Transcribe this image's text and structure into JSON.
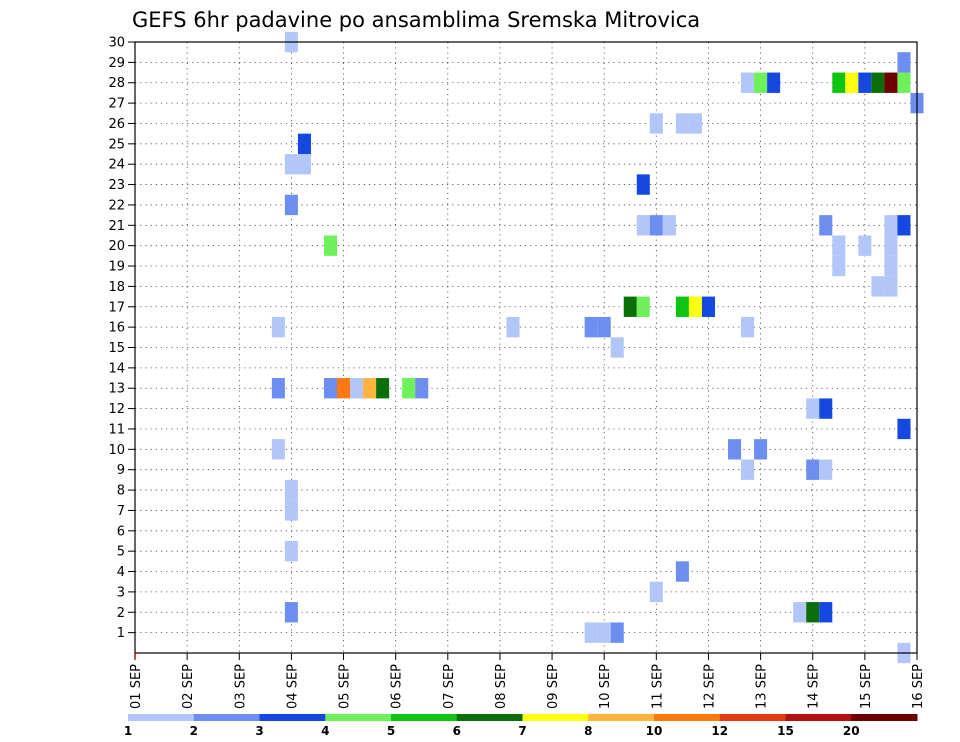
{
  "chart_data": {
    "type": "heatmap",
    "title": "GEFS 6hr padavine po ansamblima Sremska Mitrovica",
    "y_ticks": [
      "1",
      "2",
      "3",
      "4",
      "5",
      "6",
      "7",
      "8",
      "9",
      "10",
      "11",
      "12",
      "13",
      "14",
      "15",
      "16",
      "17",
      "18",
      "19",
      "20",
      "21",
      "22",
      "23",
      "24",
      "25",
      "26",
      "27",
      "28",
      "29",
      "30"
    ],
    "x_ticks": [
      "01 SEP",
      "02 SEP",
      "03 SEP",
      "04 SEP",
      "05 SEP",
      "06 SEP",
      "07 SEP",
      "08 SEP",
      "09 SEP",
      "10 SEP",
      "11 SEP",
      "12 SEP",
      "13 SEP",
      "14 SEP",
      "15 SEP",
      "16 SEP"
    ],
    "x_range_days": [
      1,
      16
    ],
    "y_range": [
      0,
      30
    ],
    "grid": true,
    "colorbar": {
      "labels": [
        "1",
        "2",
        "3",
        "4",
        "5",
        "6",
        "7",
        "8",
        "10",
        "12",
        "15",
        "20"
      ],
      "colors": [
        "#b3c6fa",
        "#6b8ef0",
        "#1448e0",
        "#6ef05a",
        "#10c414",
        "#0a6e0a",
        "#ffff10",
        "#ffb43c",
        "#ff7810",
        "#e03c14",
        "#b40f0f",
        "#6e0000"
      ]
    },
    "cells": [
      {
        "m": 30,
        "d": 4.0,
        "c": 0
      },
      {
        "m": 29,
        "d": 15.75,
        "c": 1
      },
      {
        "m": 28,
        "d": 12.75,
        "c": 0
      },
      {
        "m": 28,
        "d": 13.0,
        "c": 3
      },
      {
        "m": 28,
        "d": 13.25,
        "c": 2
      },
      {
        "m": 28,
        "d": 14.5,
        "c": 4
      },
      {
        "m": 28,
        "d": 14.75,
        "c": 6
      },
      {
        "m": 28,
        "d": 15.0,
        "c": 2
      },
      {
        "m": 28,
        "d": 15.25,
        "c": 5
      },
      {
        "m": 28,
        "d": 15.5,
        "c": 11
      },
      {
        "m": 28,
        "d": 15.75,
        "c": 3
      },
      {
        "m": 27,
        "d": 16.0,
        "c": 1
      },
      {
        "m": 26,
        "d": 11.0,
        "c": 0
      },
      {
        "m": 26,
        "d": 11.5,
        "c": 0
      },
      {
        "m": 26,
        "d": 11.75,
        "c": 0
      },
      {
        "m": 25,
        "d": 4.25,
        "c": 2
      },
      {
        "m": 24,
        "d": 4.0,
        "c": 0
      },
      {
        "m": 24,
        "d": 4.25,
        "c": 0
      },
      {
        "m": 23,
        "d": 10.75,
        "c": 2
      },
      {
        "m": 22,
        "d": 4.0,
        "c": 1
      },
      {
        "m": 21,
        "d": 10.75,
        "c": 0
      },
      {
        "m": 21,
        "d": 11.0,
        "c": 1
      },
      {
        "m": 21,
        "d": 11.25,
        "c": 0
      },
      {
        "m": 21,
        "d": 14.25,
        "c": 1
      },
      {
        "m": 21,
        "d": 15.5,
        "c": 0
      },
      {
        "m": 21,
        "d": 15.75,
        "c": 2
      },
      {
        "m": 20,
        "d": 4.75,
        "c": 3
      },
      {
        "m": 20,
        "d": 14.5,
        "c": 0
      },
      {
        "m": 20,
        "d": 15.0,
        "c": 0
      },
      {
        "m": 20,
        "d": 15.5,
        "c": 0
      },
      {
        "m": 19,
        "d": 14.5,
        "c": 0
      },
      {
        "m": 19,
        "d": 15.5,
        "c": 0
      },
      {
        "m": 18,
        "d": 15.25,
        "c": 0
      },
      {
        "m": 18,
        "d": 15.5,
        "c": 0
      },
      {
        "m": 17,
        "d": 10.5,
        "c": 5
      },
      {
        "m": 17,
        "d": 10.75,
        "c": 3
      },
      {
        "m": 17,
        "d": 11.5,
        "c": 4
      },
      {
        "m": 17,
        "d": 11.75,
        "c": 6
      },
      {
        "m": 17,
        "d": 12.0,
        "c": 2
      },
      {
        "m": 16,
        "d": 3.75,
        "c": 0
      },
      {
        "m": 16,
        "d": 8.25,
        "c": 0
      },
      {
        "m": 16,
        "d": 9.75,
        "c": 1
      },
      {
        "m": 16,
        "d": 10.0,
        "c": 1
      },
      {
        "m": 16,
        "d": 12.75,
        "c": 0
      },
      {
        "m": 15,
        "d": 10.25,
        "c": 0
      },
      {
        "m": 13,
        "d": 3.75,
        "c": 1
      },
      {
        "m": 13,
        "d": 4.75,
        "c": 1
      },
      {
        "m": 13,
        "d": 5.0,
        "c": 8
      },
      {
        "m": 13,
        "d": 5.25,
        "c": 0
      },
      {
        "m": 13,
        "d": 5.5,
        "c": 7
      },
      {
        "m": 13,
        "d": 5.75,
        "c": 5
      },
      {
        "m": 13,
        "d": 6.25,
        "c": 3
      },
      {
        "m": 13,
        "d": 6.5,
        "c": 1
      },
      {
        "m": 12,
        "d": 14.0,
        "c": 0
      },
      {
        "m": 12,
        "d": 14.25,
        "c": 2
      },
      {
        "m": 11,
        "d": 15.75,
        "c": 2
      },
      {
        "m": 10,
        "d": 3.75,
        "c": 0
      },
      {
        "m": 10,
        "d": 12.5,
        "c": 1
      },
      {
        "m": 10,
        "d": 13.0,
        "c": 1
      },
      {
        "m": 9,
        "d": 12.75,
        "c": 0
      },
      {
        "m": 9,
        "d": 14.0,
        "c": 1
      },
      {
        "m": 9,
        "d": 14.25,
        "c": 0
      },
      {
        "m": 8,
        "d": 4.0,
        "c": 0
      },
      {
        "m": 7,
        "d": 4.0,
        "c": 0
      },
      {
        "m": 5,
        "d": 4.0,
        "c": 0
      },
      {
        "m": 4,
        "d": 11.5,
        "c": 1
      },
      {
        "m": 3,
        "d": 11.0,
        "c": 0
      },
      {
        "m": 2,
        "d": 4.0,
        "c": 1
      },
      {
        "m": 2,
        "d": 13.75,
        "c": 0
      },
      {
        "m": 2,
        "d": 14.0,
        "c": 5
      },
      {
        "m": 2,
        "d": 14.25,
        "c": 2
      },
      {
        "m": 1,
        "d": 9.75,
        "c": 0
      },
      {
        "m": 1,
        "d": 10.0,
        "c": 0
      },
      {
        "m": 1,
        "d": 10.25,
        "c": 1
      },
      {
        "m": 0,
        "d": 15.75,
        "c": 0
      }
    ]
  }
}
